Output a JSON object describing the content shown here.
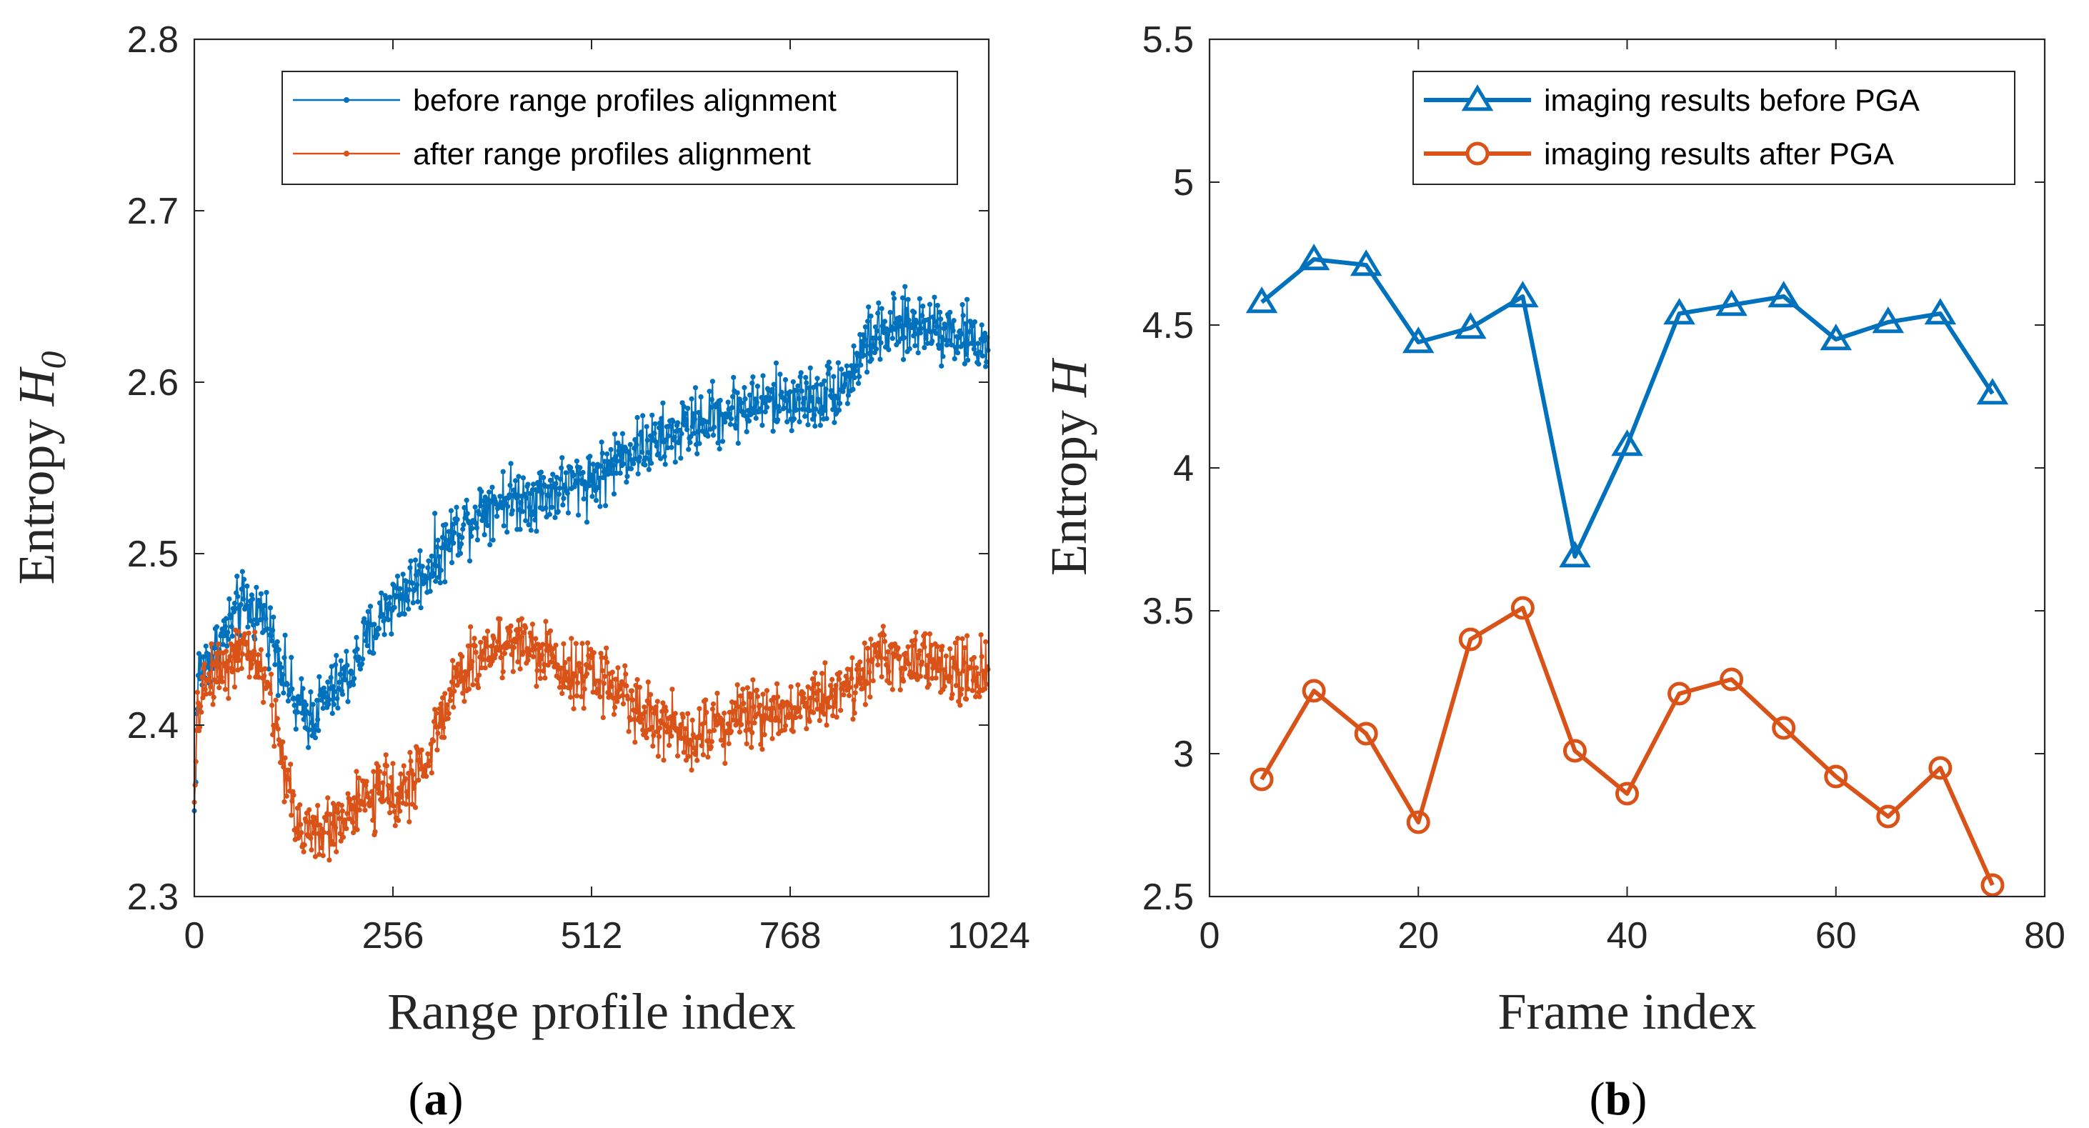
{
  "chart_data": [
    {
      "type": "line",
      "caption": "(a)",
      "caption_letter": "a",
      "xlabel": "Range profile index",
      "ylabel_prefix": "Entropy ",
      "ylabel_symbol": "H",
      "ylabel_subscript": "0",
      "xlim": [
        0,
        1024
      ],
      "ylim": [
        2.3,
        2.8
      ],
      "xticks": [
        0,
        256,
        512,
        768,
        1024
      ],
      "yticks": [
        2.3,
        2.4,
        2.5,
        2.6,
        2.7,
        2.8
      ],
      "xtick_labels": [
        "0",
        "256",
        "512",
        "768",
        "1024"
      ],
      "ytick_labels": [
        "2.3",
        "2.4",
        "2.5",
        "2.6",
        "2.7",
        "2.8"
      ],
      "legend_position": "top-right",
      "n_points": 1024,
      "series": [
        {
          "name": "before range profiles alignment",
          "color": "#0072BD",
          "marker": "dot",
          "trend": [
            [
              0,
              2.35
            ],
            [
              5,
              2.43
            ],
            [
              30,
              2.445
            ],
            [
              60,
              2.47
            ],
            [
              90,
              2.465
            ],
            [
              110,
              2.44
            ],
            [
              130,
              2.41
            ],
            [
              150,
              2.405
            ],
            [
              180,
              2.42
            ],
            [
              200,
              2.43
            ],
            [
              230,
              2.455
            ],
            [
              250,
              2.47
            ],
            [
              300,
              2.49
            ],
            [
              340,
              2.515
            ],
            [
              380,
              2.53
            ],
            [
              450,
              2.535
            ],
            [
              520,
              2.545
            ],
            [
              560,
              2.56
            ],
            [
              600,
              2.565
            ],
            [
              640,
              2.575
            ],
            [
              700,
              2.585
            ],
            [
              760,
              2.59
            ],
            [
              800,
              2.59
            ],
            [
              840,
              2.6
            ],
            [
              870,
              2.625
            ],
            [
              900,
              2.63
            ],
            [
              950,
              2.635
            ],
            [
              1000,
              2.625
            ],
            [
              1024,
              2.62
            ]
          ],
          "noise_amplitude": 0.028
        },
        {
          "name": "after range profiles alignment",
          "color": "#D95319",
          "marker": "dot",
          "trend": [
            [
              0,
              2.355
            ],
            [
              5,
              2.41
            ],
            [
              20,
              2.43
            ],
            [
              50,
              2.44
            ],
            [
              80,
              2.44
            ],
            [
              95,
              2.42
            ],
            [
              110,
              2.39
            ],
            [
              130,
              2.345
            ],
            [
              160,
              2.335
            ],
            [
              200,
              2.35
            ],
            [
              240,
              2.36
            ],
            [
              280,
              2.365
            ],
            [
              300,
              2.38
            ],
            [
              330,
              2.42
            ],
            [
              380,
              2.445
            ],
            [
              420,
              2.45
            ],
            [
              450,
              2.44
            ],
            [
              500,
              2.43
            ],
            [
              540,
              2.425
            ],
            [
              570,
              2.41
            ],
            [
              600,
              2.4
            ],
            [
              640,
              2.395
            ],
            [
              700,
              2.405
            ],
            [
              760,
              2.41
            ],
            [
              800,
              2.415
            ],
            [
              850,
              2.425
            ],
            [
              880,
              2.44
            ],
            [
              950,
              2.435
            ],
            [
              1000,
              2.43
            ],
            [
              1024,
              2.43
            ]
          ],
          "noise_amplitude": 0.028
        }
      ]
    },
    {
      "type": "line",
      "caption": "(b)",
      "caption_letter": "b",
      "xlabel": "Frame index",
      "ylabel_prefix": "Entropy ",
      "ylabel_symbol": "H",
      "ylabel_subscript": "",
      "xlim": [
        0,
        80
      ],
      "ylim": [
        2.5,
        5.5
      ],
      "xticks": [
        0,
        20,
        40,
        60,
        80
      ],
      "yticks": [
        2.5,
        3,
        3.5,
        4,
        4.5,
        5,
        5.5
      ],
      "xtick_labels": [
        "0",
        "20",
        "40",
        "60",
        "80"
      ],
      "ytick_labels": [
        "2.5",
        "3",
        "3.5",
        "4",
        "4.5",
        "5",
        "5.5"
      ],
      "legend_position": "top-right",
      "x": [
        5,
        10,
        15,
        20,
        25,
        30,
        35,
        40,
        45,
        50,
        55,
        60,
        65,
        70,
        75
      ],
      "series": [
        {
          "name": "imaging results before PGA",
          "color": "#0072BD",
          "marker": "triangle",
          "values": [
            4.58,
            4.73,
            4.71,
            4.44,
            4.49,
            4.6,
            3.69,
            4.08,
            4.54,
            4.57,
            4.6,
            4.45,
            4.51,
            4.54,
            4.26
          ]
        },
        {
          "name": "imaging results after PGA",
          "color": "#D95319",
          "marker": "circle",
          "values": [
            2.91,
            3.22,
            3.07,
            2.76,
            3.4,
            3.51,
            3.01,
            2.86,
            3.21,
            3.26,
            3.09,
            2.92,
            2.78,
            2.95,
            2.54
          ]
        }
      ]
    }
  ]
}
